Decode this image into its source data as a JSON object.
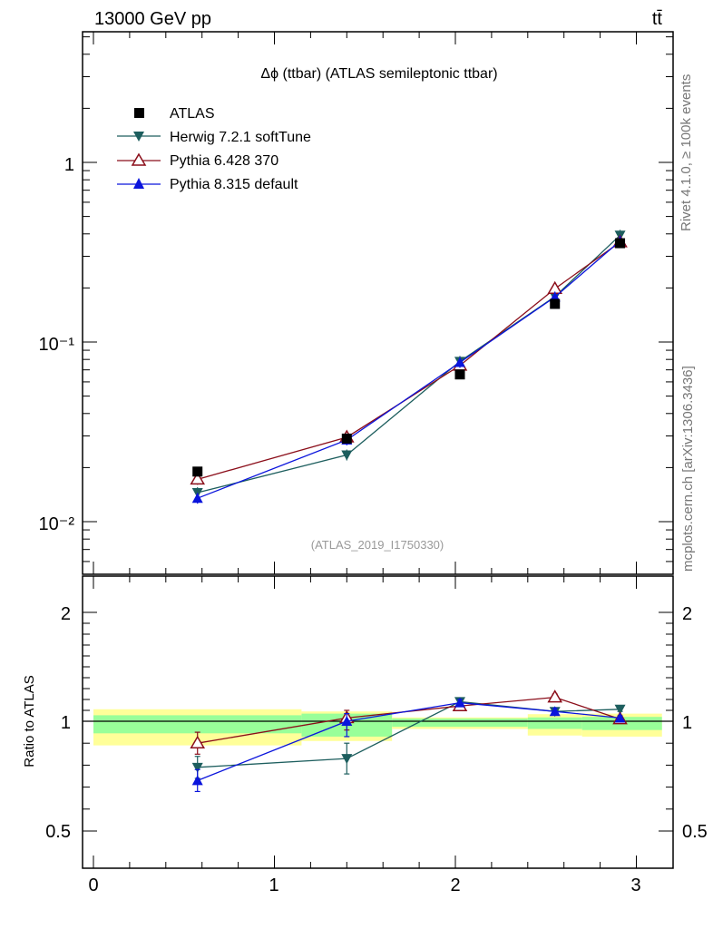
{
  "header": {
    "beam": "13000 GeV pp",
    "process": "tt̄",
    "rivet": "Rivet 4.1.0, ≥ 100k events",
    "source": "mcplots.cern.ch [arXiv:1306.3436]",
    "analysis": "(ATLAS_2019_I1750330)"
  },
  "chart_data": {
    "type": "line",
    "title": "Δϕ (ttbar) (ATLAS semileptonic ttbar)",
    "x": [
      0.575,
      1.4,
      2.025,
      2.55,
      2.91
    ],
    "bin_edges": [
      0,
      1.15,
      1.65,
      2.4,
      2.7,
      3.1416
    ],
    "xlim": [
      -0.05,
      3.2
    ],
    "x_ticks": [
      "0",
      "1",
      "2",
      "3"
    ],
    "main": {
      "yscale": "log",
      "ylim": [
        0.0055,
        5.5
      ],
      "y_ticks": [
        "10⁻²",
        "10⁻¹",
        "1"
      ],
      "y_tick_values": [
        0.01,
        0.1,
        1
      ]
    },
    "ratio": {
      "ylabel": "Ratio to ATLAS",
      "ylim": [
        0.4,
        2.4
      ],
      "y_ticks": [
        "0.5",
        "1",
        "2"
      ],
      "y_tick_values": [
        0.5,
        1,
        2
      ],
      "band_stat": [
        0.055,
        0.07,
        0.025,
        0.035,
        0.04
      ],
      "band_total": [
        0.11,
        0.09,
        0.035,
        0.065,
        0.07
      ]
    },
    "data": {
      "name": "ATLAS",
      "values": [
        0.019,
        0.029,
        0.066,
        0.163,
        0.355
      ],
      "color": "#000000",
      "marker": "square"
    },
    "series": [
      {
        "name": "Herwig 7.2.1 softTune",
        "values": [
          0.0145,
          0.0235,
          0.078,
          0.179,
          0.393
        ],
        "ratio": [
          0.79,
          0.83,
          1.18,
          1.09,
          1.11
        ],
        "ratio_err": [
          0.05,
          0.07,
          0.03,
          0.03,
          0.02
        ],
        "color": "#1d5e5e",
        "marker": "triangle-down"
      },
      {
        "name": "Pythia 6.428 370",
        "values": [
          0.0172,
          0.0295,
          0.074,
          0.198,
          0.36
        ],
        "ratio": [
          0.9,
          1.03,
          1.14,
          1.22,
          1.02
        ],
        "ratio_err": [
          0.05,
          0.07,
          0.03,
          0.03,
          0.02
        ],
        "color": "#8b0e1a",
        "marker": "triangle-up-open"
      },
      {
        "name": "Pythia 8.315 default",
        "values": [
          0.0135,
          0.0285,
          0.077,
          0.178,
          0.365
        ],
        "ratio": [
          0.73,
          1.0,
          1.17,
          1.09,
          1.03
        ],
        "ratio_err": [
          0.05,
          0.07,
          0.03,
          0.03,
          0.02
        ],
        "color": "#0a14dc",
        "marker": "triangle-up"
      }
    ]
  }
}
